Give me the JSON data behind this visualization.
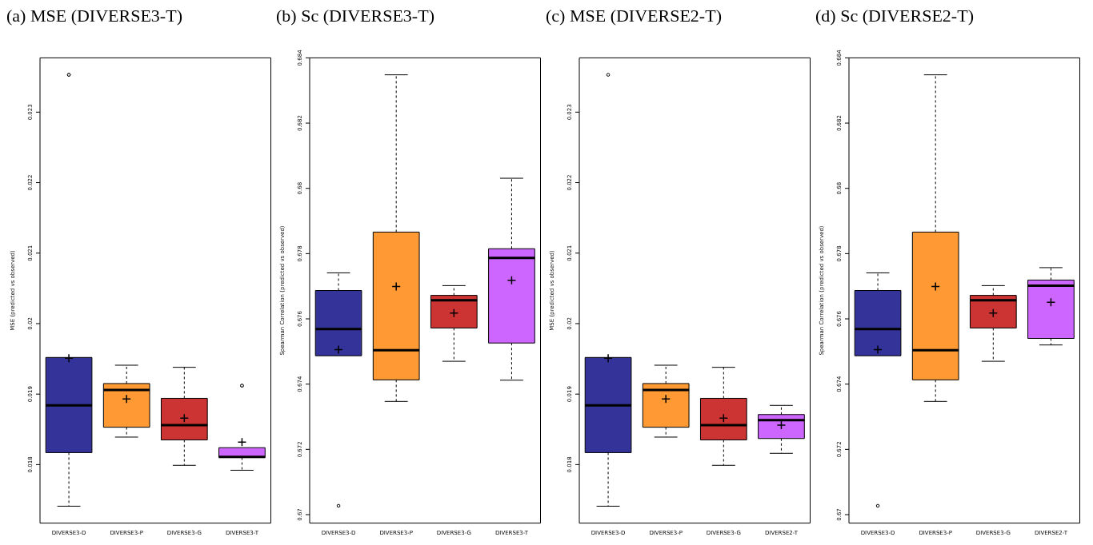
{
  "chart_data": [
    {
      "type": "box",
      "title": "(a) MSE (DIVERSE3-T)",
      "ylabel": "MSE (predicted vs observed)",
      "categories": [
        "DIVERSE3-D",
        "DIVERSE3-P",
        "DIVERSE3-G",
        "DIVERSE3-T"
      ],
      "colors": [
        "#333399",
        "#ff9933",
        "#cc3333",
        "#cc66ff"
      ],
      "ylim": [
        0.01717,
        0.02377
      ],
      "yticks": [
        0.018,
        0.019,
        0.02,
        0.021,
        0.022,
        0.023
      ],
      "boxes": [
        {
          "low": 0.01741,
          "q1": 0.01817,
          "median": 0.01884,
          "q3": 0.01952,
          "high": 0.01952,
          "mean": 0.01951,
          "outliers": [
            0.02353,
            0.02353
          ]
        },
        {
          "low": 0.01839,
          "q1": 0.01853,
          "median": 0.01906,
          "q3": 0.01915,
          "high": 0.01941,
          "mean": 0.01893
        },
        {
          "low": 0.01799,
          "q1": 0.01835,
          "median": 0.01856,
          "q3": 0.01894,
          "high": 0.01938,
          "mean": 0.01866
        },
        {
          "low": 0.01792,
          "q1": 0.0181,
          "median": 0.01811,
          "q3": 0.01824,
          "high": 0.01824,
          "mean": 0.01832,
          "outliers": [
            0.01912,
            0.01912
          ]
        }
      ]
    },
    {
      "type": "box",
      "title": "(b) Sc (DIVERSE3-T)",
      "ylabel": "Spearman Correlation (predicted vs observed)",
      "categories": [
        "DIVERSE3-D",
        "DIVERSE3-P",
        "DIVERSE3-G",
        "DIVERSE3-T"
      ],
      "colors": [
        "#333399",
        "#ff9933",
        "#cc3333",
        "#cc66ff"
      ],
      "ylim": [
        0.66974,
        0.684
      ],
      "yticks": [
        0.67,
        0.672,
        0.674,
        0.676,
        0.678,
        0.68,
        0.682,
        0.684
      ],
      "boxes": [
        {
          "low": 0.67487,
          "q1": 0.67487,
          "median": 0.67569,
          "q3": 0.67687,
          "high": 0.67741,
          "mean": 0.67506,
          "outliers": [
            0.67027
          ]
        },
        {
          "low": 0.67347,
          "q1": 0.67413,
          "median": 0.67504,
          "q3": 0.67866,
          "high": 0.68348,
          "mean": 0.67699
        },
        {
          "low": 0.6747,
          "q1": 0.67572,
          "median": 0.67657,
          "q3": 0.67672,
          "high": 0.67702,
          "mean": 0.67618
        },
        {
          "low": 0.67412,
          "q1": 0.67526,
          "median": 0.67787,
          "q3": 0.67815,
          "high": 0.68031,
          "mean": 0.67718
        }
      ]
    },
    {
      "type": "box",
      "title": "(c) MSE (DIVERSE2-T)",
      "ylabel": "MSE (predicted vs observed)",
      "categories": [
        "DIVERSE3-D",
        "DIVERSE3-P",
        "DIVERSE3-G",
        "DIVERSE2-T"
      ],
      "colors": [
        "#333399",
        "#ff9933",
        "#cc3333",
        "#cc66ff"
      ],
      "ylim": [
        0.01717,
        0.02377
      ],
      "yticks": [
        0.018,
        0.019,
        0.02,
        0.021,
        0.022,
        0.023
      ],
      "boxes": [
        {
          "low": 0.01741,
          "q1": 0.01817,
          "median": 0.01884,
          "q3": 0.01952,
          "high": 0.01952,
          "mean": 0.01951,
          "outliers": [
            0.02353
          ]
        },
        {
          "low": 0.01839,
          "q1": 0.01853,
          "median": 0.01906,
          "q3": 0.01915,
          "high": 0.01941,
          "mean": 0.01893
        },
        {
          "low": 0.01799,
          "q1": 0.01835,
          "median": 0.01856,
          "q3": 0.01894,
          "high": 0.01938,
          "mean": 0.01866
        },
        {
          "low": 0.01816,
          "q1": 0.01837,
          "median": 0.01863,
          "q3": 0.01871,
          "high": 0.01884,
          "mean": 0.01856
        }
      ]
    },
    {
      "type": "box",
      "title": "(d) Sc (DIVERSE2-T)",
      "ylabel": "Spearman Correlation (predicted vs observed)",
      "categories": [
        "DIVERSE3-D",
        "DIVERSE3-P",
        "DIVERSE3-G",
        "DIVERSE2-T"
      ],
      "colors": [
        "#333399",
        "#ff9933",
        "#cc3333",
        "#cc66ff"
      ],
      "ylim": [
        0.66974,
        0.684
      ],
      "yticks": [
        0.67,
        0.672,
        0.674,
        0.676,
        0.678,
        0.68,
        0.682,
        0.684
      ],
      "boxes": [
        {
          "low": 0.67487,
          "q1": 0.67487,
          "median": 0.67569,
          "q3": 0.67687,
          "high": 0.67741,
          "mean": 0.67506,
          "outliers": [
            0.67027
          ]
        },
        {
          "low": 0.67347,
          "q1": 0.67413,
          "median": 0.67504,
          "q3": 0.67866,
          "high": 0.68348,
          "mean": 0.67699
        },
        {
          "low": 0.6747,
          "q1": 0.67572,
          "median": 0.67657,
          "q3": 0.67672,
          "high": 0.67702,
          "mean": 0.67618
        },
        {
          "low": 0.6752,
          "q1": 0.6754,
          "median": 0.67702,
          "q3": 0.67719,
          "high": 0.67757,
          "mean": 0.67651
        }
      ]
    }
  ]
}
